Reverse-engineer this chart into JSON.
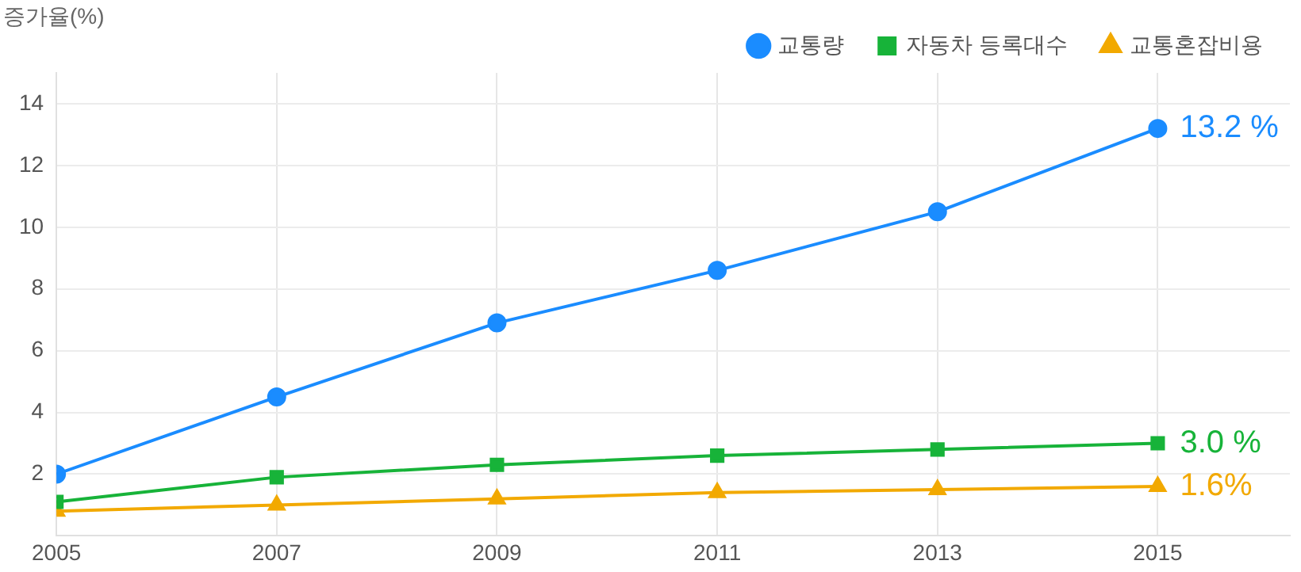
{
  "chart_data": {
    "type": "line",
    "ylabel": "증가율(%)",
    "x": [
      2005,
      2007,
      2009,
      2011,
      2013,
      2015
    ],
    "xlim": [
      2005,
      2016.2
    ],
    "xticks": [
      2005,
      2007,
      2009,
      2011,
      2013,
      2015
    ],
    "ylim": [
      0,
      15
    ],
    "yticks": [
      2,
      4,
      6,
      8,
      10,
      12,
      14
    ],
    "grid": true,
    "legend": "top right",
    "line_style": "solid",
    "series": [
      {
        "name": "교통량",
        "color": "#1a8cff",
        "marker": "circle",
        "values": [
          2.0,
          4.5,
          6.9,
          8.6,
          10.5,
          13.2
        ],
        "value_labels": [
          null,
          null,
          null,
          null,
          null,
          "13.2 %"
        ]
      },
      {
        "name": "자동차 등록대수",
        "color": "#17b339",
        "marker": "square",
        "values": [
          1.1,
          1.9,
          2.3,
          2.6,
          2.8,
          3.0
        ],
        "value_labels": [
          null,
          null,
          null,
          null,
          null,
          "3.0 %"
        ]
      },
      {
        "name": "교통혼잡비용",
        "color": "#f2a900",
        "marker": "triangle",
        "values": [
          0.8,
          1.0,
          1.2,
          1.4,
          1.5,
          1.6
        ],
        "value_labels": [
          null,
          null,
          null,
          null,
          null,
          "1.6%"
        ]
      }
    ]
  }
}
